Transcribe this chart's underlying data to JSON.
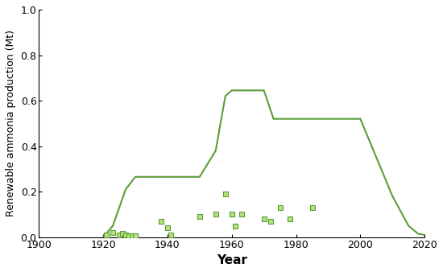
{
  "line_x": [
    1920,
    1923,
    1927,
    1930,
    1935,
    1940,
    1945,
    1950,
    1955,
    1958,
    1960,
    1965,
    1970,
    1973,
    1975,
    1980,
    1985,
    1990,
    1995,
    2000,
    2005,
    2010,
    2015,
    2018,
    2020
  ],
  "line_y": [
    0.0,
    0.05,
    0.21,
    0.265,
    0.265,
    0.265,
    0.265,
    0.265,
    0.38,
    0.62,
    0.645,
    0.645,
    0.645,
    0.52,
    0.52,
    0.52,
    0.52,
    0.52,
    0.52,
    0.52,
    0.35,
    0.18,
    0.05,
    0.015,
    0.01
  ],
  "scatter_x": [
    1921,
    1923,
    1925,
    1926,
    1927,
    1928,
    1929,
    1930,
    1938,
    1940,
    1941,
    1950,
    1955,
    1958,
    1960,
    1961,
    1963,
    1970,
    1972,
    1975,
    1978,
    1985
  ],
  "scatter_y": [
    0.01,
    0.02,
    0.01,
    0.015,
    0.01,
    0.005,
    0.005,
    0.005,
    0.07,
    0.04,
    0.01,
    0.09,
    0.1,
    0.19,
    0.1,
    0.05,
    0.1,
    0.08,
    0.07,
    0.13,
    0.08,
    0.13
  ],
  "line_color": "#5a9e3a",
  "scatter_facecolor": "#b8e07a",
  "scatter_edgecolor": "#5a9e3a",
  "xlabel": "Year",
  "ylabel": "Renewable ammonia production (Mt)",
  "xlim": [
    1900,
    2020
  ],
  "ylim": [
    0,
    1
  ],
  "xticks": [
    1900,
    1920,
    1940,
    1960,
    1980,
    2000,
    2020
  ],
  "yticks": [
    0,
    0.2,
    0.4,
    0.6,
    0.8,
    1
  ],
  "background_color": "#ffffff",
  "linewidth": 1.5,
  "marker_size": 18,
  "xlabel_fontsize": 11,
  "ylabel_fontsize": 9,
  "tick_fontsize": 9
}
